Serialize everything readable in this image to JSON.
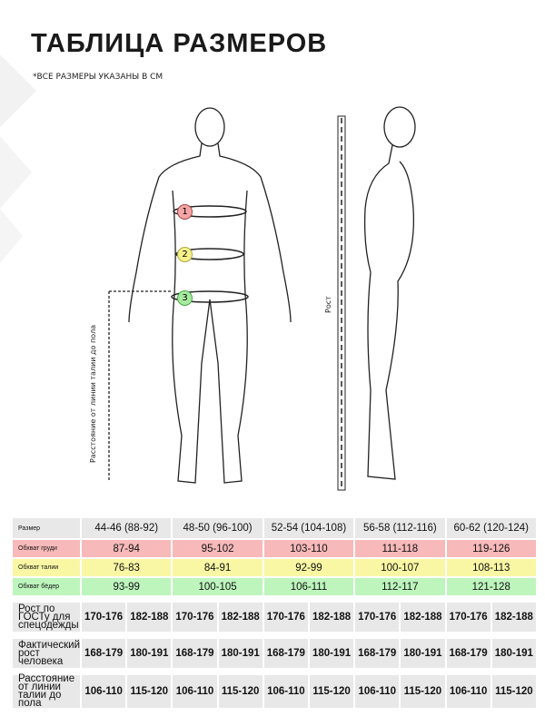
{
  "title": "ТАБЛИЦА РАЗМЕРОВ",
  "subtitle": "*ВСЕ РАЗМЕРЫ УКАЗАНЫ В СМ",
  "figure": {
    "height_label": "Рост",
    "waist_floor_label": "Расстояние от линии талии до пола",
    "markers": [
      {
        "n": "1",
        "color": "#f4a6a6"
      },
      {
        "n": "2",
        "color": "#f5f08a"
      },
      {
        "n": "3",
        "color": "#a8eaa0"
      }
    ]
  },
  "colors": {
    "chest": "#f7b9b9",
    "waist": "#f9f7a4",
    "hips": "#bdf5bd",
    "neutral": "#e8e8e8"
  },
  "table": {
    "header": {
      "label": "Размер",
      "sizes": [
        "44-46 (88-92)",
        "48-50 (96-100)",
        "52-54 (104-108)",
        "56-58 (112-116)",
        "60-62 (120-124)"
      ]
    },
    "chest": {
      "label": "Обхват груди",
      "values": [
        "87-94",
        "95-102",
        "103-110",
        "111-118",
        "119-126"
      ]
    },
    "waist": {
      "label": "Обхват талии",
      "values": [
        "76-83",
        "84-91",
        "92-99",
        "100-107",
        "108-113"
      ]
    },
    "hips": {
      "label": "Обхват бёдер",
      "values": [
        "93-99",
        "100-105",
        "106-111",
        "112-117",
        "121-128"
      ]
    },
    "gost": {
      "label": "Рост по ГОСТу для спецодежды",
      "values": [
        "170-176",
        "182-188",
        "170-176",
        "182-188",
        "170-176",
        "182-188",
        "170-176",
        "182-188",
        "170-176",
        "182-188"
      ]
    },
    "actual": {
      "label": "Фактический рост человека",
      "values": [
        "168-179",
        "180-191",
        "168-179",
        "180-191",
        "168-179",
        "180-191",
        "168-179",
        "180-191",
        "168-179",
        "180-191"
      ]
    },
    "distance": {
      "label": "Расстояние от линии талии до пола",
      "values": [
        "106-110",
        "115-120",
        "106-110",
        "115-120",
        "106-110",
        "115-120",
        "106-110",
        "115-120",
        "106-110",
        "115-120"
      ]
    }
  }
}
